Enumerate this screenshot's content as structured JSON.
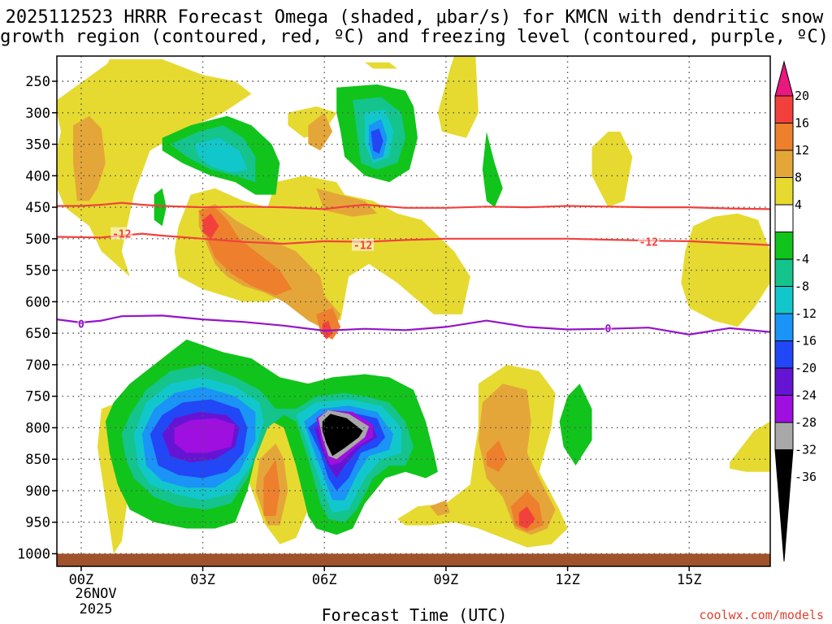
{
  "chart_data": {
    "type": "contour-time-height",
    "title_line1": "2025112523 HRRR Forecast Omega (shaded, μbar/s) for KMCN with dendritic snow",
    "title_line2": "growth region (contoured, red, ºC) and freezing level (contoured, purple, ºC)",
    "station": "KMCN",
    "model": "HRRR",
    "init": "2025112523",
    "xlabel": "Forecast Time (UTC)",
    "x_ticks": [
      {
        "hour": 0,
        "label": "00Z"
      },
      {
        "hour": 3,
        "label": "03Z"
      },
      {
        "hour": 6,
        "label": "06Z"
      },
      {
        "hour": 9,
        "label": "09Z"
      },
      {
        "hour": 12,
        "label": "12Z"
      },
      {
        "hour": 15,
        "label": "15Z"
      }
    ],
    "date_label_line1": "26NOV",
    "date_label_line2": "2025",
    "x_range_hours": [
      -0.6,
      17.0
    ],
    "y_ticks_hpa": [
      "250",
      "300",
      "350",
      "400",
      "450",
      "500",
      "550",
      "600",
      "650",
      "700",
      "750",
      "800",
      "850",
      "900",
      "950",
      "1000"
    ],
    "y_range_hpa": [
      210,
      1020
    ],
    "colorbar": {
      "unit": "μbar/s",
      "ticks": [
        "20",
        "16",
        "12",
        "8",
        "4",
        "-4",
        "-8",
        "-12",
        "-16",
        "-20",
        "-24",
        "-28",
        "-32",
        "-36"
      ],
      "bins": [
        {
          "range": ">20",
          "color": "#e8187e"
        },
        {
          "range": "16 to 20",
          "color": "#f2413c"
        },
        {
          "range": "12 to 16",
          "color": "#ee7f2c"
        },
        {
          "range": "8 to 12",
          "color": "#e5a639"
        },
        {
          "range": "4 to 8",
          "color": "#e6da31"
        },
        {
          "range": "-4 to 4",
          "color": "#ffffff"
        },
        {
          "range": "-8 to -4",
          "color": "#11c41b"
        },
        {
          "range": "-12 to -8",
          "color": "#14c48c"
        },
        {
          "range": "-16 to -12",
          "color": "#12c7cb"
        },
        {
          "range": "-20 to -16",
          "color": "#1a94f6"
        },
        {
          "range": "-24 to -20",
          "color": "#2247f6"
        },
        {
          "range": "-28 to -24",
          "color": "#6614d4"
        },
        {
          "range": "-32 to -28",
          "color": "#9e0fe0"
        },
        {
          "range": "-36 to -32",
          "color": "#a8a8a8"
        },
        {
          "range": "<-36",
          "color": "#000000"
        }
      ]
    },
    "dgz_contours": [
      {
        "level": "-12",
        "label": "-12",
        "color": "#f2413c",
        "points": [
          [
            -0.6,
            448
          ],
          [
            0,
            448
          ],
          [
            0.5,
            446
          ],
          [
            1,
            443
          ],
          [
            1.5,
            446
          ],
          [
            2,
            448
          ],
          [
            3,
            450
          ],
          [
            4,
            449
          ],
          [
            5,
            450
          ],
          [
            6,
            453
          ],
          [
            6.5,
            449
          ],
          [
            7,
            446
          ],
          [
            8,
            451
          ],
          [
            9,
            451
          ],
          [
            10,
            449
          ],
          [
            11,
            450
          ],
          [
            12,
            448
          ],
          [
            13,
            449
          ],
          [
            14,
            450
          ],
          [
            15,
            450
          ],
          [
            16,
            452
          ],
          [
            17,
            453
          ]
        ]
      },
      {
        "level": "-12",
        "label": "-12",
        "color": "#f2413c",
        "points": [
          [
            -0.6,
            497
          ],
          [
            0.5,
            498
          ],
          [
            1,
            495
          ],
          [
            1.5,
            492
          ],
          [
            2,
            495
          ],
          [
            3,
            500
          ],
          [
            4,
            505
          ],
          [
            5,
            508
          ],
          [
            6,
            504
          ],
          [
            7,
            505
          ],
          [
            8,
            502
          ],
          [
            9,
            500
          ],
          [
            10,
            500
          ],
          [
            12,
            500
          ],
          [
            14,
            503
          ],
          [
            15,
            504
          ],
          [
            16,
            507
          ],
          [
            17,
            510
          ]
        ]
      }
    ],
    "freezing_level_contour": {
      "level": "0",
      "label": "0",
      "color": "#9513c8",
      "points": [
        [
          -0.6,
          628
        ],
        [
          0,
          633
        ],
        [
          0.5,
          630
        ],
        [
          1,
          623
        ],
        [
          2,
          622
        ],
        [
          3,
          628
        ],
        [
          4,
          632
        ],
        [
          5,
          638
        ],
        [
          6,
          646
        ],
        [
          7,
          643
        ],
        [
          8,
          645
        ],
        [
          9,
          640
        ],
        [
          10,
          630
        ],
        [
          11,
          640
        ],
        [
          12,
          644
        ],
        [
          13,
          643
        ],
        [
          14,
          641
        ],
        [
          15,
          652
        ],
        [
          16,
          642
        ],
        [
          17,
          648
        ]
      ]
    },
    "contour_labels": [
      {
        "text": "-12",
        "hour": 1.0,
        "hpa": 492,
        "color": "#f2413c"
      },
      {
        "text": "-12",
        "hour": 6.95,
        "hpa": 510,
        "color": "#f2413c"
      },
      {
        "text": "-12",
        "hour": 14.0,
        "hpa": 505,
        "color": "#f2413c"
      },
      {
        "text": "0",
        "hour": 0,
        "hpa": 635,
        "color": "#9513c8"
      },
      {
        "text": "0",
        "hour": 13.0,
        "hpa": 642,
        "color": "#9513c8"
      }
    ],
    "omega_regions": [
      {
        "bin": "4 to 8",
        "points": [
          [
            0.8,
            1000
          ],
          [
            1.0,
            980
          ],
          [
            1.2,
            890
          ],
          [
            0.8,
            760
          ],
          [
            0.5,
            770
          ],
          [
            0.4,
            800
          ]
        ]
      }
    ],
    "ground_band_hpa": [
      1000,
      1020
    ]
  },
  "credit": "coolwx.com/models",
  "colors": {
    "ground": "#a0522d",
    "grid": "#555555"
  }
}
